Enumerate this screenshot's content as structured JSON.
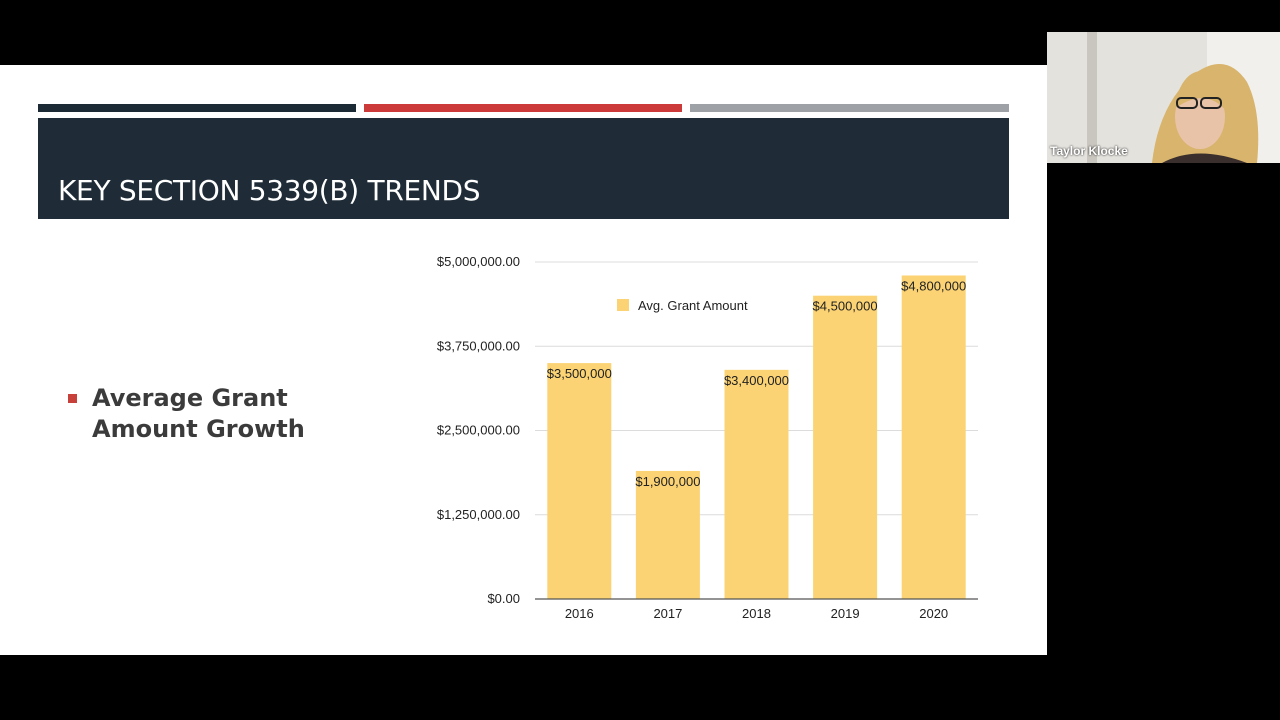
{
  "slide": {
    "title": "KEY SECTION 5339(B) TRENDS",
    "bullet": "Average Grant Amount Growth",
    "accent_colors": [
      "#1c2a36",
      "#cc3b3a",
      "#9ea2a6"
    ]
  },
  "chart_data": {
    "type": "bar",
    "categories": [
      "2016",
      "2017",
      "2018",
      "2019",
      "2020"
    ],
    "series": [
      {
        "name": "Avg. Grant Amount",
        "values": [
          3500000,
          1900000,
          3400000,
          4500000,
          4800000
        ]
      }
    ],
    "data_labels": [
      "$3,500,000",
      "$1,900,000",
      "$3,400,000",
      "$4,500,000",
      "$4,800,000"
    ],
    "yticks": [
      0,
      1250000,
      2500000,
      3750000,
      5000000
    ],
    "ytick_labels": [
      "$0.00",
      "$1,250,000.00",
      "$2,500,000.00",
      "$3,750,000.00",
      "$5,000,000.00"
    ],
    "ylim": [
      0,
      5000000
    ],
    "grid": true,
    "legend": "top-center",
    "bar_color": "#fbd374"
  },
  "webcam": {
    "name": "Taylor Klocke"
  },
  "nav_icons": [
    "back-arrow-icon",
    "pen-icon",
    "slides-menu-icon",
    "forward-arrow-icon"
  ]
}
